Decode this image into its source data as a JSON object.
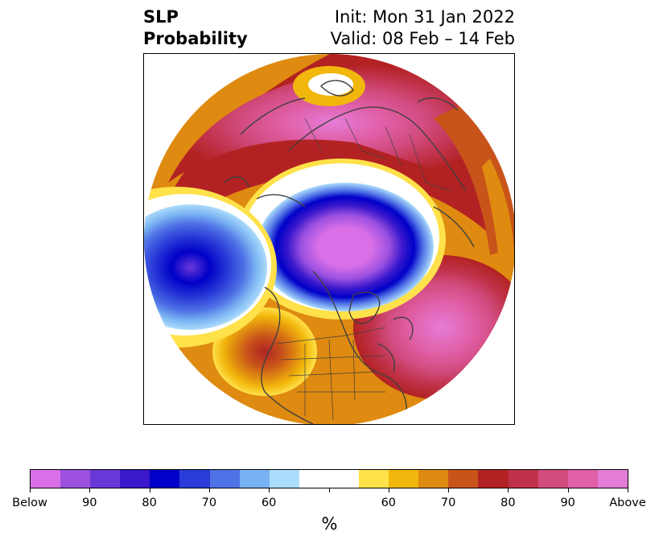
{
  "title": {
    "variable": "SLP",
    "product": "Probability",
    "init": "Init: Mon 31 Jan 2022",
    "valid": "Valid: 08 Feb – 14 Feb"
  },
  "colorbar": {
    "colors": [
      "#da70e8",
      "#9b50e0",
      "#6b38d8",
      "#3a18cc",
      "#0000c8",
      "#2a3cd8",
      "#4f72e6",
      "#79b2f2",
      "#acdcfb",
      "#ffffff",
      "#ffffff",
      "#ffe14a",
      "#f2b70c",
      "#df8a10",
      "#c8541a",
      "#b22222",
      "#c0324a",
      "#d24c80",
      "#e060a8",
      "#e57cd8"
    ],
    "tick_labels": [
      "Below",
      "90",
      "80",
      "70",
      "60",
      "",
      "60",
      "70",
      "80",
      "90",
      "Above"
    ],
    "unit": "%"
  }
}
